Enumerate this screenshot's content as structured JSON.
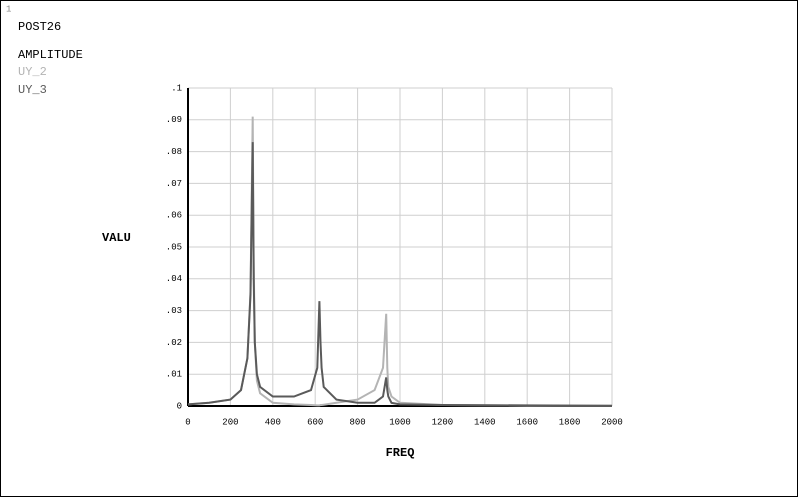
{
  "chart_data": {
    "type": "line",
    "window_label": "1",
    "title": "POST26",
    "subtitle": "AMPLITUDE",
    "xlabel": "FREQ",
    "ylabel": "VALU",
    "x": [
      0,
      100,
      200,
      250,
      280,
      295,
      305,
      310,
      315,
      325,
      340,
      400,
      500,
      580,
      610,
      620,
      625,
      630,
      640,
      700,
      800,
      880,
      920,
      935,
      940,
      945,
      960,
      1000,
      1200,
      1600,
      2000
    ],
    "series": [
      {
        "name": "UY_2",
        "color": "#b4b4b4",
        "values": [
          0.0005,
          0.001,
          0.002,
          0.005,
          0.015,
          0.036,
          0.091,
          0.045,
          0.02,
          0.008,
          0.004,
          0.001,
          0.0005,
          0.0003,
          0.0002,
          0.0002,
          0.0003,
          0.0003,
          0.0004,
          0.001,
          0.002,
          0.005,
          0.012,
          0.029,
          0.012,
          0.006,
          0.003,
          0.001,
          0.0003,
          0.0001,
          0.0001
        ]
      },
      {
        "name": "UY_3",
        "color": "#5a5a5a",
        "values": [
          0.0005,
          0.001,
          0.002,
          0.005,
          0.015,
          0.035,
          0.083,
          0.04,
          0.02,
          0.01,
          0.006,
          0.003,
          0.003,
          0.005,
          0.012,
          0.033,
          0.02,
          0.012,
          0.006,
          0.002,
          0.001,
          0.001,
          0.003,
          0.009,
          0.005,
          0.003,
          0.001,
          0.0005,
          0.0003,
          0.0002,
          0.0001
        ]
      }
    ],
    "xlim": [
      0,
      2000
    ],
    "xticks": [
      0,
      200,
      400,
      600,
      800,
      1000,
      1200,
      1400,
      1600,
      1800,
      2000
    ],
    "ylim": [
      0,
      0.1
    ],
    "yticks": [
      0,
      {
        "value": 0.01,
        "label": ".01"
      },
      {
        "value": 0.02,
        "label": ".02"
      },
      {
        "value": 0.03,
        "label": ".03"
      },
      {
        "value": 0.04,
        "label": ".04"
      },
      {
        "value": 0.05,
        "label": ".05"
      },
      {
        "value": 0.06,
        "label": ".06"
      },
      {
        "value": 0.07,
        "label": ".07"
      },
      {
        "value": 0.08,
        "label": ".08"
      },
      {
        "value": 0.09,
        "label": ".09"
      },
      {
        "value": 0.1,
        "label": ".1"
      }
    ],
    "grid": true
  }
}
